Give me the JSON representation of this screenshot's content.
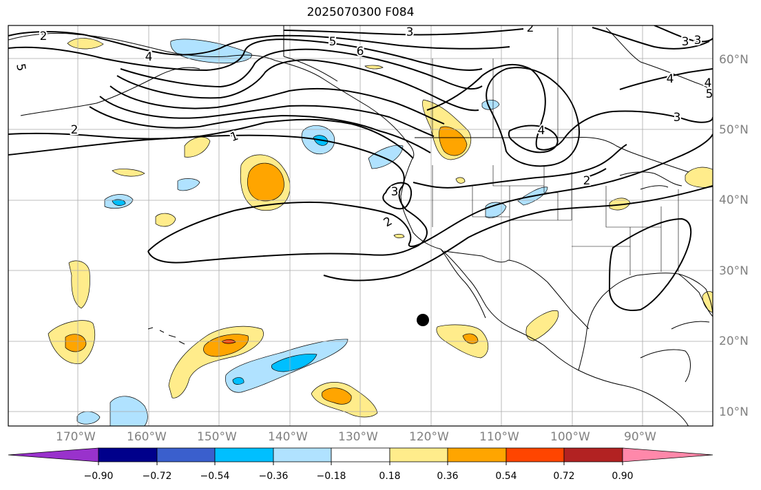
{
  "title": "2025070300 F084",
  "lat_labels": [
    "60°N",
    "50°N",
    "40°N",
    "30°N",
    "20°N",
    "10°N"
  ],
  "lon_labels": [
    "170°W",
    "160°W",
    "150°W",
    "140°W",
    "130°W",
    "120°W",
    "110°W",
    "100°W",
    "90°W"
  ],
  "contour_labels": [
    "2",
    "4",
    "5",
    "3",
    "5",
    "6",
    "2",
    "3",
    "4",
    "4",
    "3",
    "5",
    "2",
    "1",
    "3",
    "2",
    "4",
    "3",
    "2"
  ],
  "colorbar": {
    "colors": [
      "#9932cc",
      "#00008b",
      "#3a5fcd",
      "#00bfff",
      "#b0e2ff",
      "#ffffff",
      "#ffec8b",
      "#ffa500",
      "#ff4500",
      "#b22222",
      "#ff88aa"
    ],
    "labels": [
      "−0.90",
      "−0.72",
      "−0.54",
      "−0.36",
      "−0.18",
      "0.18",
      "0.36",
      "0.54",
      "0.72",
      "0.90"
    ]
  }
}
